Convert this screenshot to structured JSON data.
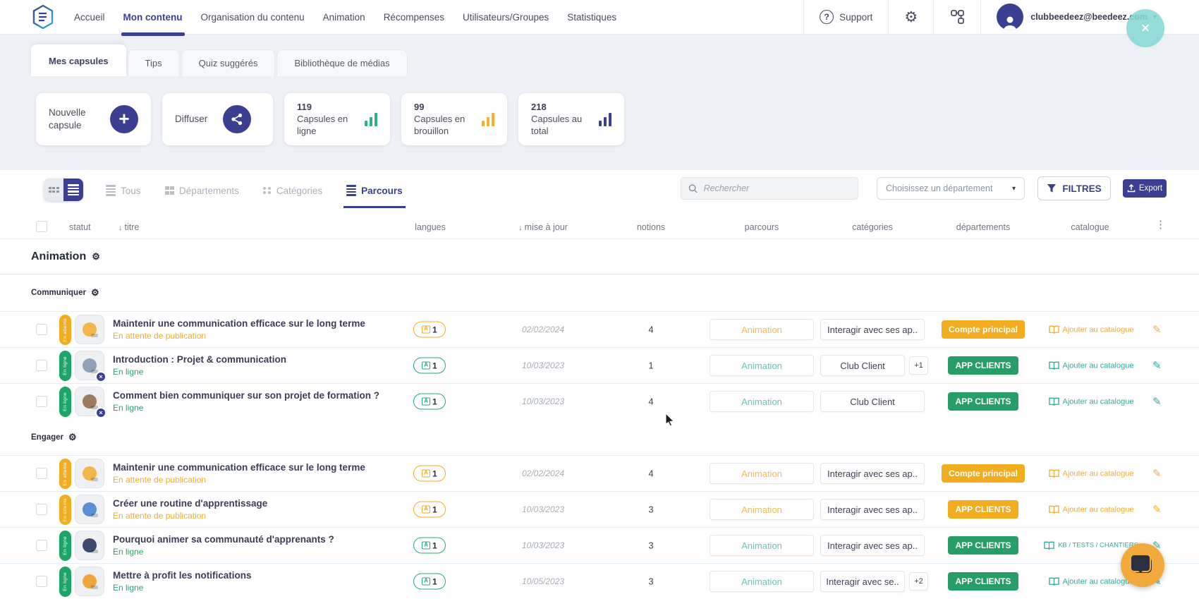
{
  "topbar": {
    "nav": [
      {
        "label": "Accueil"
      },
      {
        "label": "Mon contenu"
      },
      {
        "label": "Organisation du contenu"
      },
      {
        "label": "Animation"
      },
      {
        "label": "Récompenses"
      },
      {
        "label": "Utilisateurs/Groupes"
      },
      {
        "label": "Statistiques"
      }
    ],
    "active_nav": "Mon contenu",
    "support_label": "Support",
    "user_email": "clubbeedeez@beedeez.com"
  },
  "tabs": {
    "items": [
      {
        "label": "Mes capsules"
      },
      {
        "label": "Tips"
      },
      {
        "label": "Quiz suggérés"
      },
      {
        "label": "Bibliothèque de médias"
      }
    ],
    "active": "Mes capsules"
  },
  "cards": {
    "new_capsule_label": "Nouvelle capsule",
    "diffuse_label": "Diffuser",
    "stats": [
      {
        "value": "119",
        "label": "Capsules en ligne",
        "color": "#2bb381"
      },
      {
        "value": "99",
        "label": "Capsules en brouillon",
        "color": "#f2b32c"
      },
      {
        "value": "218",
        "label": "Capsules au total",
        "color": "#3b3f92"
      }
    ]
  },
  "toolbar": {
    "view_filters": [
      {
        "label": "Tous"
      },
      {
        "label": "Départements"
      },
      {
        "label": "Catégories"
      },
      {
        "label": "Parcours"
      }
    ],
    "active_filter": "Parcours",
    "search_placeholder": "Rechercher",
    "department_placeholder": "Choisissez un département",
    "filtres_label": "FILTRES",
    "export_label": "Export"
  },
  "table": {
    "columns": {
      "statut": "statut",
      "titre": "titre",
      "langues": "langues",
      "maj": "mise à jour",
      "notions": "notions",
      "parcours": "parcours",
      "categories": "catégories",
      "departements": "départements",
      "catalogue": "catalogue"
    },
    "group_title": "Animation",
    "sections": [
      {
        "name": "Communiquer",
        "rows": [
          {
            "status": "En attente",
            "theme": "orange",
            "thumb": "megaphone",
            "title": "Maintenir une communication efficace sur le long terme",
            "subtitle": "En attente de publication",
            "langs": "1",
            "updated": "02/02/2024",
            "notions": "4",
            "parcours": "Animation",
            "category": "Interagir avec ses ap..",
            "category_extra": "",
            "department": "Compte principal",
            "dept_theme": "orange",
            "catalog": "Ajouter au catalogue",
            "catalog_small": false,
            "x_badge": false
          },
          {
            "status": "En ligne",
            "theme": "green",
            "thumb": "people-photo",
            "title": "Introduction : Projet & communication",
            "subtitle": "En ligne",
            "langs": "1",
            "updated": "10/03/2023",
            "notions": "1",
            "parcours": "Animation",
            "category": "Club Client",
            "category_extra": "+1",
            "department": "APP CLIENTS",
            "dept_theme": "green",
            "catalog": "Ajouter au catalogue",
            "catalog_small": false,
            "x_badge": true
          },
          {
            "status": "En ligne",
            "theme": "green",
            "thumb": "mascots-photo",
            "title": "Comment bien communiquer sur son projet de formation ?",
            "subtitle": "En ligne",
            "langs": "1",
            "updated": "10/03/2023",
            "notions": "4",
            "parcours": "Animation",
            "category": "Club Client",
            "category_extra": "",
            "department": "APP CLIENTS",
            "dept_theme": "green",
            "catalog": "Ajouter au catalogue",
            "catalog_small": false,
            "x_badge": true
          }
        ]
      },
      {
        "name": "Engager",
        "rows": [
          {
            "status": "En attente",
            "theme": "orange",
            "thumb": "megaphone",
            "title": "Maintenir une communication efficace sur le long terme",
            "subtitle": "En attente de publication",
            "langs": "1",
            "updated": "02/02/2024",
            "notions": "4",
            "parcours": "Animation",
            "category": "Interagir avec ses ap..",
            "category_extra": "",
            "department": "Compte principal",
            "dept_theme": "orange",
            "catalog": "Ajouter au catalogue",
            "catalog_small": false,
            "x_badge": false
          },
          {
            "status": "En attente",
            "theme": "orange",
            "thumb": "clock",
            "title": "Créer une routine d'apprentissage",
            "subtitle": "En attente de publication",
            "langs": "1",
            "updated": "10/03/2023",
            "notions": "3",
            "parcours": "Animation",
            "category": "Interagir avec ses ap..",
            "category_extra": "",
            "department": "APP CLIENTS",
            "dept_theme": "orange",
            "catalog": "Ajouter au catalogue",
            "catalog_small": false,
            "x_badge": false
          },
          {
            "status": "En ligne",
            "theme": "green",
            "thumb": "crowd",
            "title": "Pourquoi animer sa communauté d'apprenants ?",
            "subtitle": "En ligne",
            "langs": "1",
            "updated": "10/03/2023",
            "notions": "3",
            "parcours": "Animation",
            "category": "Interagir avec ses ap..",
            "category_extra": "",
            "department": "APP CLIENTS",
            "dept_theme": "green",
            "catalog": "KB / TESTS / CHANTIERS",
            "catalog_small": true,
            "x_badge": false
          },
          {
            "status": "En ligne",
            "theme": "green",
            "thumb": "envelope",
            "title": "Mettre à profit les notifications",
            "subtitle": "En ligne",
            "langs": "1",
            "updated": "10/05/2023",
            "notions": "3",
            "parcours": "Animation",
            "category": "Interagir avec se..",
            "category_extra": "+2",
            "department": "APP CLIENTS",
            "dept_theme": "green",
            "catalog": "Ajouter au catalogue",
            "catalog_small": false,
            "x_badge": false
          }
        ]
      }
    ]
  },
  "icons": {
    "gear": "⚙",
    "dots": "⋮",
    "caret": "▾",
    "sort": "↓",
    "plus": "+",
    "close": "×",
    "pencil": "✎",
    "question": "?"
  },
  "colors": {
    "accent": "#3b3f92",
    "orange": "#f2ac1f",
    "green": "#279e67",
    "teal": "#2fa99b"
  }
}
